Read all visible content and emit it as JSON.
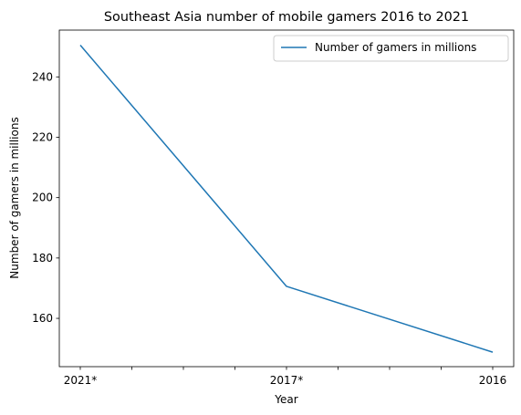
{
  "chart_data": {
    "type": "line",
    "title": "Southeast Asia number of mobile gamers 2016 to 2021",
    "xlabel": "Year",
    "ylabel": "Number of gamers in millions",
    "categories": [
      "2021*",
      "2017*",
      "2016"
    ],
    "x_tick_labels": [
      "2021*",
      "",
      "",
      "",
      "2017*",
      "",
      "",
      "",
      "2016"
    ],
    "series": [
      {
        "name": "Number of gamers in millions",
        "values": [
          250.5,
          170.6,
          148.8
        ],
        "color": "#1f77b4"
      }
    ],
    "y_ticks": [
      160,
      180,
      200,
      220,
      240
    ],
    "ylim": [
      144.0,
      255.5
    ],
    "grid": false,
    "legend_position": "top-right"
  }
}
